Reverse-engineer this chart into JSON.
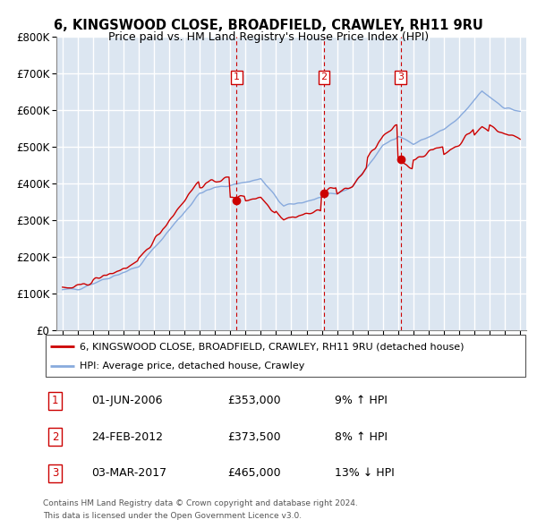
{
  "title": "6, KINGSWOOD CLOSE, BROADFIELD, CRAWLEY, RH11 9RU",
  "subtitle": "Price paid vs. HM Land Registry's House Price Index (HPI)",
  "legend_line1": "6, KINGSWOOD CLOSE, BROADFIELD, CRAWLEY, RH11 9RU (detached house)",
  "legend_line2": "HPI: Average price, detached house, Crawley",
  "transactions": [
    {
      "num": 1,
      "date": "01-JUN-2006",
      "price": 353000,
      "pct": "9%",
      "dir": "↑",
      "x": 2006.42
    },
    {
      "num": 2,
      "date": "24-FEB-2012",
      "price": 373500,
      "pct": "8%",
      "dir": "↑",
      "x": 2012.14
    },
    {
      "num": 3,
      "date": "03-MAR-2017",
      "price": 465000,
      "pct": "13%",
      "dir": "↓",
      "x": 2017.17
    }
  ],
  "footer_line1": "Contains HM Land Registry data © Crown copyright and database right 2024.",
  "footer_line2": "This data is licensed under the Open Government Licence v3.0.",
  "price_color": "#cc0000",
  "hpi_color": "#88aadd",
  "background_color": "#dce6f1",
  "grid_color": "#ffffff",
  "transaction_box_color": "#cc0000",
  "ylim": [
    0,
    800000
  ],
  "yticks": [
    0,
    100000,
    200000,
    300000,
    400000,
    500000,
    600000,
    700000,
    800000
  ],
  "xlim": [
    1994.6,
    2025.4
  ],
  "xtick_start": 1995,
  "xtick_end": 2025
}
